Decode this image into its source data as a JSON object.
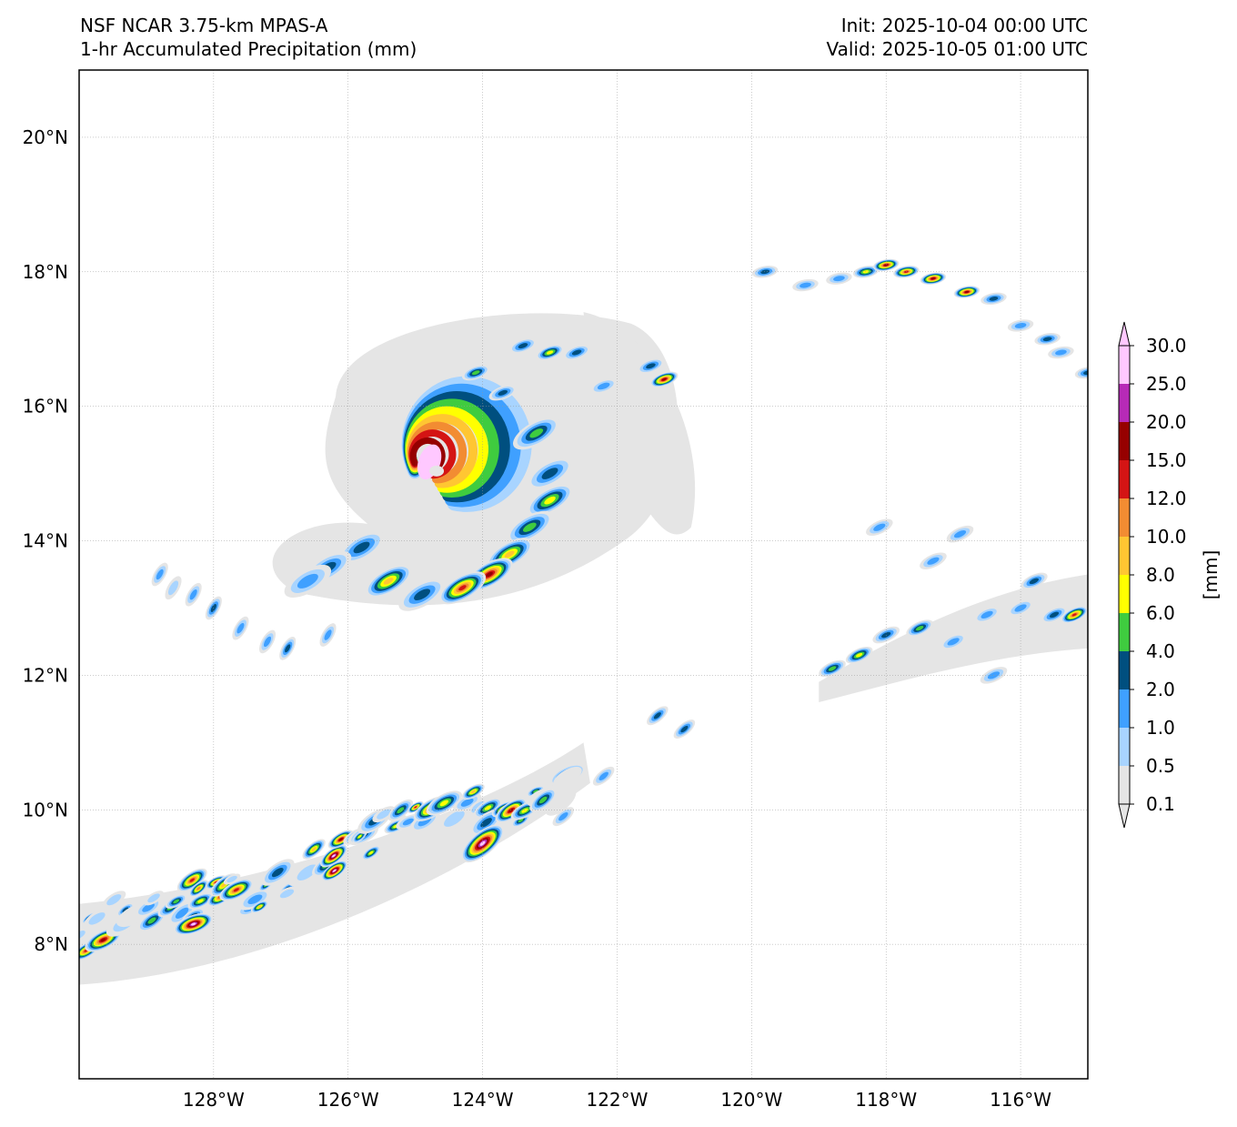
{
  "header": {
    "model": "NSF NCAR 3.75-km MPAS-A",
    "field": "1-hr Accumulated Precipitation (mm)",
    "init": "Init: 2025-10-04 00:00 UTC",
    "valid": "Valid: 2025-10-05 01:00 UTC"
  },
  "map": {
    "lon_range": [
      -130,
      -115
    ],
    "lat_range": [
      6,
      21
    ],
    "lon_ticks": [
      {
        "value": -128,
        "label": "128°W"
      },
      {
        "value": -126,
        "label": "126°W"
      },
      {
        "value": -124,
        "label": "124°W"
      },
      {
        "value": -122,
        "label": "122°W"
      },
      {
        "value": -120,
        "label": "120°W"
      },
      {
        "value": -118,
        "label": "118°W"
      },
      {
        "value": -116,
        "label": "116°W"
      }
    ],
    "lat_ticks": [
      {
        "value": 8,
        "label": "8°N"
      },
      {
        "value": 10,
        "label": "10°N"
      },
      {
        "value": 12,
        "label": "12°N"
      },
      {
        "value": 14,
        "label": "14°N"
      },
      {
        "value": 16,
        "label": "16°N"
      },
      {
        "value": 18,
        "label": "18°N"
      },
      {
        "value": 20,
        "label": "20°N"
      }
    ],
    "gridlines": true
  },
  "colorbar": {
    "unit_label": "[mm]",
    "levels": [
      "0.1",
      "0.5",
      "1.0",
      "2.0",
      "4.0",
      "6.0",
      "8.0",
      "10.0",
      "12.0",
      "15.0",
      "20.0",
      "25.0",
      "30.0"
    ],
    "colors": [
      "#e5e5e5",
      "#a8d4ff",
      "#3fa0ff",
      "#004f7f",
      "#3fcc3f",
      "#ffff00",
      "#ffc632",
      "#f28c32",
      "#d41414",
      "#960000",
      "#b72ab7",
      "#ffc8ff"
    ],
    "extend": "both"
  },
  "precip_features": [
    {
      "name": "hurricane-core",
      "type": "spiral",
      "center": [
        -124.9,
        15.2
      ],
      "outer_radius_deg": 1.8,
      "max_level": "30.0"
    },
    {
      "name": "outer-rainband",
      "type": "arc",
      "from": [
        -128.5,
        13.5
      ],
      "to": [
        -121.2,
        16.5
      ],
      "max_level": "20.0"
    },
    {
      "name": "itcz-band",
      "type": "band",
      "from": [
        -130,
        8.0
      ],
      "to": [
        -122.5,
        10.8
      ],
      "max_level": "30.0"
    },
    {
      "name": "northeast-band",
      "type": "band",
      "from": [
        -119.8,
        18.0
      ],
      "to": [
        -115,
        16.5
      ],
      "max_level": "20.0"
    },
    {
      "name": "east-band",
      "type": "band",
      "from": [
        -119,
        11.8
      ],
      "to": [
        -115,
        13.0
      ],
      "max_level": "10.0"
    }
  ]
}
